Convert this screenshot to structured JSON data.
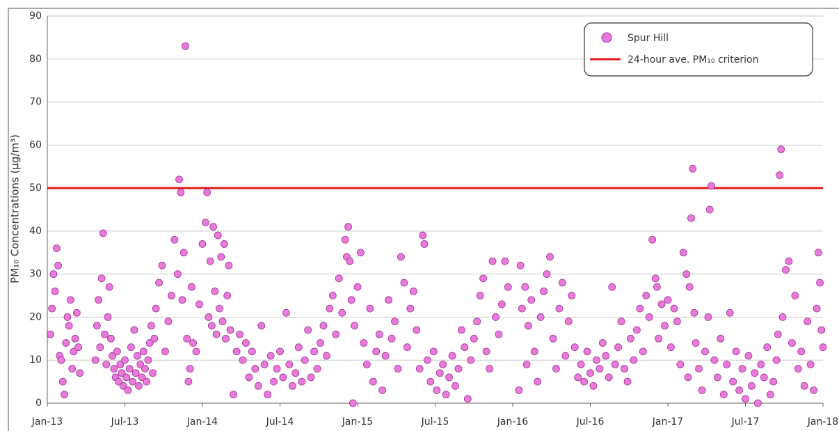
{
  "chart_data": {
    "type": "scatter",
    "ylabel": "PM₁₀ Concentrations (µg/m³)",
    "series": [
      {
        "name": "Spur Hill",
        "color": "#e87ad8",
        "x": [
          2013.02,
          2013.03,
          2013.04,
          2013.05,
          2013.06,
          2013.07,
          2013.08,
          2013.09,
          2013.1,
          2013.11,
          2013.12,
          2013.13,
          2013.14,
          2013.15,
          2013.16,
          2013.17,
          2013.18,
          2013.19,
          2013.2,
          2013.21,
          2013.31,
          2013.32,
          2013.33,
          2013.34,
          2013.35,
          2013.36,
          2013.37,
          2013.38,
          2013.39,
          2013.4,
          2013.41,
          2013.42,
          2013.43,
          2013.44,
          2013.45,
          2013.46,
          2013.47,
          2013.48,
          2013.49,
          2013.5,
          2013.51,
          2013.52,
          2013.53,
          2013.54,
          2013.55,
          2013.56,
          2013.57,
          2013.58,
          2013.59,
          2013.6,
          2013.61,
          2013.62,
          2013.63,
          2013.64,
          2013.65,
          2013.66,
          2013.67,
          2013.68,
          2013.69,
          2013.7,
          2013.72,
          2013.74,
          2013.76,
          2013.78,
          2013.8,
          2013.82,
          2013.84,
          2013.85,
          2013.86,
          2013.87,
          2013.88,
          2013.89,
          2013.9,
          2013.91,
          2013.92,
          2013.93,
          2013.94,
          2013.96,
          2013.98,
          2014.0,
          2014.02,
          2014.03,
          2014.04,
          2014.05,
          2014.06,
          2014.07,
          2014.08,
          2014.09,
          2014.1,
          2014.11,
          2014.12,
          2014.13,
          2014.14,
          2014.15,
          2014.16,
          2014.17,
          2014.18,
          2014.2,
          2014.22,
          2014.24,
          2014.26,
          2014.28,
          2014.3,
          2014.32,
          2014.34,
          2014.36,
          2014.38,
          2014.4,
          2014.42,
          2014.44,
          2014.46,
          2014.48,
          2014.5,
          2014.52,
          2014.54,
          2014.56,
          2014.58,
          2014.6,
          2014.62,
          2014.64,
          2014.66,
          2014.68,
          2014.7,
          2014.72,
          2014.74,
          2014.76,
          2014.78,
          2014.8,
          2014.82,
          2014.84,
          2014.86,
          2014.88,
          2014.9,
          2014.92,
          2014.93,
          2014.94,
          2014.95,
          2014.96,
          2014.97,
          2014.98,
          2015.0,
          2015.02,
          2015.04,
          2015.06,
          2015.08,
          2015.1,
          2015.12,
          2015.14,
          2015.16,
          2015.18,
          2015.2,
          2015.22,
          2015.24,
          2015.26,
          2015.28,
          2015.3,
          2015.32,
          2015.34,
          2015.36,
          2015.38,
          2015.4,
          2015.42,
          2015.43,
          2015.45,
          2015.47,
          2015.49,
          2015.51,
          2015.53,
          2015.55,
          2015.57,
          2015.59,
          2015.61,
          2015.63,
          2015.65,
          2015.67,
          2015.69,
          2015.71,
          2015.73,
          2015.75,
          2015.77,
          2015.79,
          2015.81,
          2015.83,
          2015.85,
          2015.87,
          2015.89,
          2015.91,
          2015.93,
          2015.95,
          2015.97,
          2016.04,
          2016.05,
          2016.06,
          2016.08,
          2016.09,
          2016.1,
          2016.12,
          2016.14,
          2016.16,
          2016.18,
          2016.2,
          2016.22,
          2016.24,
          2016.26,
          2016.28,
          2016.3,
          2016.32,
          2016.34,
          2016.36,
          2016.38,
          2016.4,
          2016.42,
          2016.44,
          2016.46,
          2016.48,
          2016.5,
          2016.52,
          2016.54,
          2016.56,
          2016.58,
          2016.6,
          2016.62,
          2016.64,
          2016.66,
          2016.68,
          2016.7,
          2016.72,
          2016.74,
          2016.76,
          2016.78,
          2016.8,
          2016.82,
          2016.84,
          2016.86,
          2016.88,
          2016.9,
          2016.92,
          2016.93,
          2016.94,
          2016.96,
          2016.98,
          2017.0,
          2017.02,
          2017.04,
          2017.06,
          2017.08,
          2017.1,
          2017.12,
          2017.13,
          2017.14,
          2017.15,
          2017.16,
          2017.17,
          2017.18,
          2017.2,
          2017.22,
          2017.24,
          2017.26,
          2017.27,
          2017.28,
          2017.3,
          2017.32,
          2017.34,
          2017.36,
          2017.38,
          2017.4,
          2017.42,
          2017.44,
          2017.46,
          2017.48,
          2017.5,
          2017.52,
          2017.54,
          2017.56,
          2017.58,
          2017.6,
          2017.62,
          2017.64,
          2017.66,
          2017.68,
          2017.7,
          2017.71,
          2017.72,
          2017.73,
          2017.74,
          2017.76,
          2017.78,
          2017.8,
          2017.82,
          2017.84,
          2017.86,
          2017.88,
          2017.9,
          2017.92,
          2017.94,
          2017.96,
          2017.97,
          2017.98,
          2017.99,
          2018.0
        ],
        "values": [
          16,
          22,
          30,
          26,
          36,
          32,
          11,
          10,
          5,
          2,
          14,
          20,
          18,
          24,
          8,
          12,
          15,
          21,
          13,
          7,
          10,
          18,
          24,
          13,
          29,
          39.5,
          16,
          9,
          20,
          27,
          15,
          11,
          8,
          6,
          12,
          5,
          9,
          7,
          4,
          10,
          6,
          3,
          8,
          13,
          5,
          17,
          7,
          11,
          4,
          9,
          6,
          12,
          8,
          5,
          10,
          14,
          18,
          7,
          15,
          22,
          28,
          32,
          12,
          19,
          25,
          38,
          30,
          52,
          49,
          24,
          35,
          83,
          15,
          5,
          8,
          27,
          14,
          12,
          23,
          37,
          42,
          49,
          20,
          33,
          18,
          41,
          26,
          16,
          39,
          22,
          34,
          19,
          37,
          15,
          25,
          32,
          17,
          2,
          12,
          16,
          10,
          14,
          6,
          12,
          8,
          4,
          18,
          9,
          2,
          11,
          5,
          8,
          12,
          6,
          21,
          9,
          4,
          7,
          13,
          5,
          10,
          17,
          6,
          12,
          8,
          14,
          18,
          11,
          22,
          25,
          16,
          29,
          21,
          38,
          34,
          41,
          33,
          24,
          0,
          18,
          27,
          35,
          14,
          9,
          22,
          5,
          12,
          16,
          3,
          11,
          24,
          15,
          19,
          8,
          34,
          28,
          13,
          22,
          26,
          17,
          8,
          39,
          37,
          10,
          5,
          12,
          3,
          7,
          9,
          2,
          6,
          11,
          4,
          8,
          17,
          13,
          1,
          10,
          15,
          19,
          25,
          29,
          12,
          8,
          33,
          20,
          16,
          23,
          33,
          27,
          3,
          32,
          22,
          27,
          9,
          18,
          24,
          12,
          5,
          20,
          26,
          30,
          34,
          15,
          8,
          22,
          28,
          11,
          19,
          25,
          13,
          6,
          9,
          5,
          12,
          7,
          4,
          10,
          8,
          14,
          11,
          6,
          27,
          9,
          13,
          19,
          8,
          5,
          15,
          10,
          17,
          22,
          12,
          25,
          20,
          38,
          29,
          27,
          15,
          23,
          18,
          24,
          13,
          22,
          19,
          9,
          35,
          30,
          6,
          27,
          43,
          54.5,
          21,
          14,
          8,
          3,
          12,
          20,
          45,
          50.5,
          10,
          6,
          15,
          2,
          9,
          21,
          5,
          12,
          3,
          8,
          1,
          11,
          4,
          7,
          0,
          9,
          6,
          13,
          2,
          5,
          10,
          16,
          53,
          59,
          20,
          31,
          33,
          14,
          25,
          8,
          12,
          4,
          19,
          9,
          3,
          22,
          35,
          28,
          17,
          13
        ]
      }
    ],
    "criterion": {
      "name": "24-hour ave. PM₁₀ criterion",
      "value": 50,
      "color": "#e01b1b"
    },
    "xlim": [
      2013,
      2018
    ],
    "xticks": [
      {
        "value": 2013,
        "label": "Jan-13"
      },
      {
        "value": 2013.5,
        "label": "Jul-13"
      },
      {
        "value": 2014,
        "label": "Jan-14"
      },
      {
        "value": 2014.5,
        "label": "Jul-14"
      },
      {
        "value": 2015,
        "label": "Jan-15"
      },
      {
        "value": 2015.5,
        "label": "Jul-15"
      },
      {
        "value": 2016,
        "label": "Jan-16"
      },
      {
        "value": 2016.5,
        "label": "Jul-16"
      },
      {
        "value": 2017,
        "label": "Jan-17"
      },
      {
        "value": 2017.5,
        "label": "Jul-17"
      },
      {
        "value": 2018,
        "label": "Jan-18"
      }
    ],
    "ylim": [
      0,
      90
    ],
    "yticks": [
      0,
      10,
      20,
      30,
      40,
      50,
      60,
      70,
      80,
      90
    ],
    "grid": true,
    "legend": "upper right"
  }
}
